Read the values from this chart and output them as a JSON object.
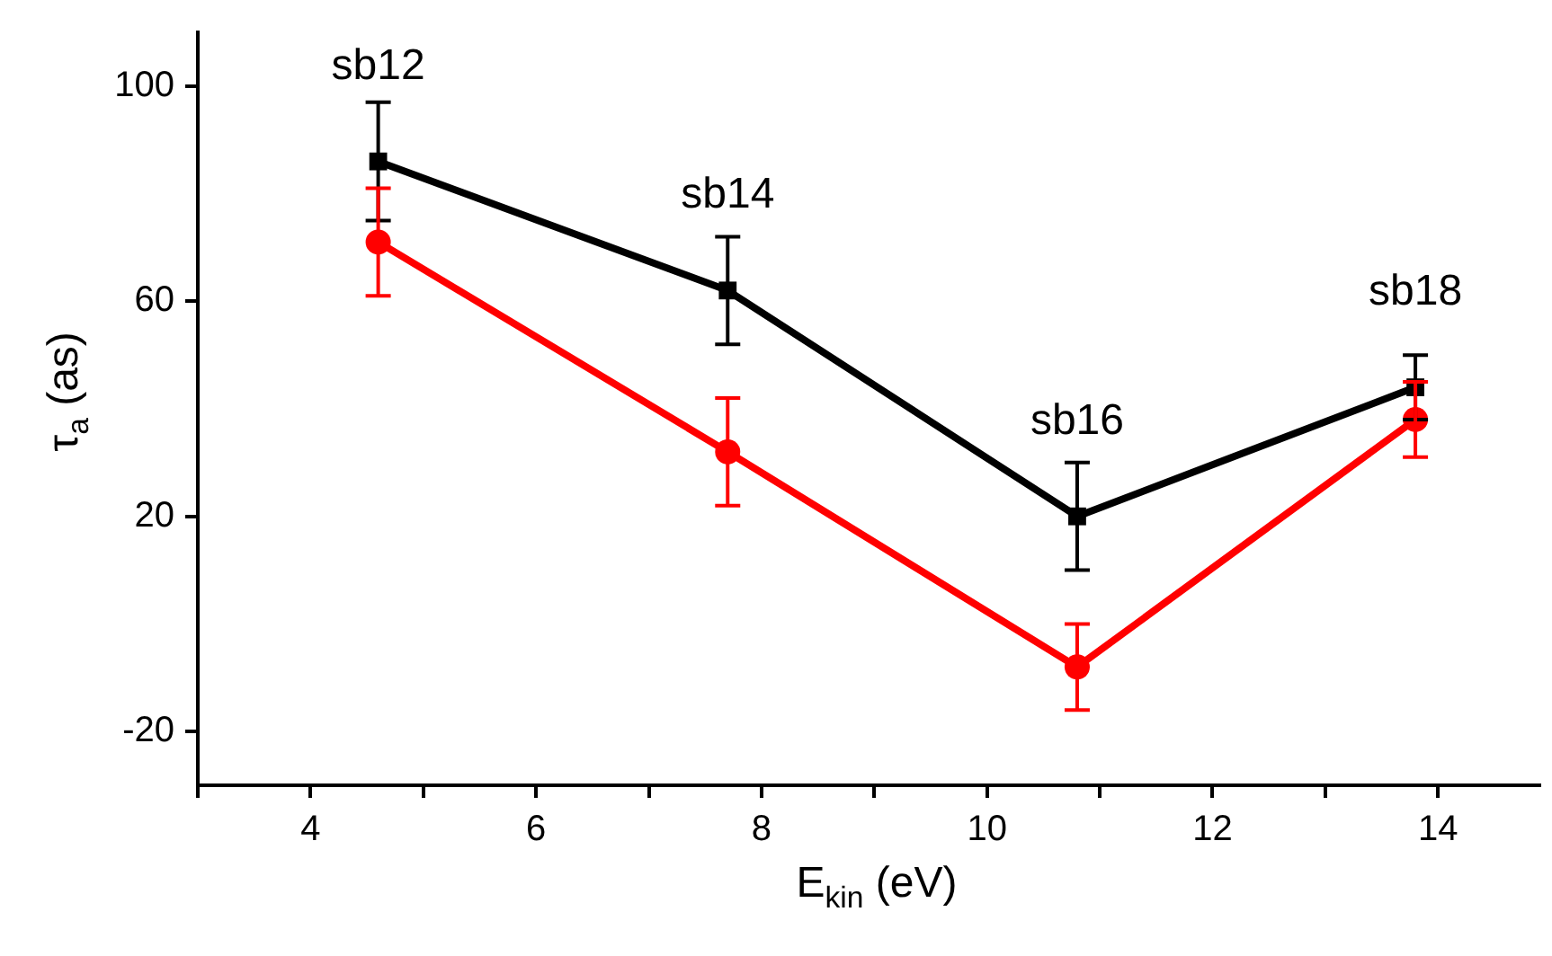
{
  "chart_data": {
    "type": "line",
    "xlabel": "E$_{kin}$ (eV)",
    "ylabel": "τ$_{a}$ (as)",
    "x": [
      4.6,
      7.7,
      10.8,
      13.8
    ],
    "series": [
      {
        "color": "#000000",
        "marker": "square",
        "values": [
          86,
          62,
          20,
          44
        ],
        "errors": [
          11,
          10,
          10,
          6
        ]
      },
      {
        "color": "#ff0000",
        "marker": "circle",
        "values": [
          71,
          32,
          -8,
          38
        ],
        "errors": [
          10,
          10,
          8,
          7
        ]
      }
    ],
    "xlim": [
      3,
      14.9
    ],
    "ylim": [
      -30,
      110
    ],
    "xticks": [
      {
        "value": 3,
        "label": null
      },
      4,
      {
        "value": 5,
        "label": null
      },
      6,
      {
        "value": 7,
        "label": null
      },
      8,
      {
        "value": 9,
        "label": null
      },
      10,
      {
        "value": 11,
        "label": null
      },
      12,
      {
        "value": 13,
        "label": null
      },
      14
    ],
    "yticks": [
      -20,
      20,
      60,
      100
    ],
    "annotations": [
      {
        "text": "sb12",
        "x": 4.6,
        "y": 86
      },
      {
        "text": "sb14",
        "x": 7.7,
        "y": 62
      },
      {
        "text": "sb16",
        "x": 10.8,
        "y": 20
      },
      {
        "text": "sb18",
        "x": 13.8,
        "y": 44
      }
    ],
    "grid": false,
    "legend": false,
    "line_style": "solid"
  }
}
